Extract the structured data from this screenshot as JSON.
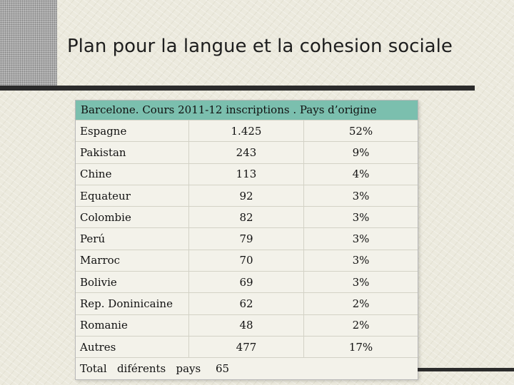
{
  "slide": {
    "title": "Plan pour la langue et la cohesion sociale"
  },
  "table": {
    "caption": "Barcelone. Cours  2011-12  inscriptions . Pays d’origine",
    "rows": [
      {
        "country": "Espagne",
        "count": "1.425",
        "percent": "52%"
      },
      {
        "country": "Pakistan",
        "count": "243",
        "percent": "9%"
      },
      {
        "country": "Chine",
        "count": "113",
        "percent": "4%"
      },
      {
        "country": "Equateur",
        "count": "92",
        "percent": "3%"
      },
      {
        "country": "Colombie",
        "count": "82",
        "percent": "3%"
      },
      {
        "country": "Perú",
        "count": "79",
        "percent": "3%"
      },
      {
        "country": "Marroc",
        "count": "70",
        "percent": "3%"
      },
      {
        "country": "Bolivie",
        "count": "69",
        "percent": "3%"
      },
      {
        "country": "Rep. Doninicaine",
        "count": "62",
        "percent": "2%"
      },
      {
        "country": "Romanie",
        "count": "48",
        "percent": "2%"
      },
      {
        "country": "Autres",
        "count": "477",
        "percent": "17%"
      }
    ],
    "total": {
      "label": "Total   diférents   pays",
      "value": "65"
    }
  }
}
